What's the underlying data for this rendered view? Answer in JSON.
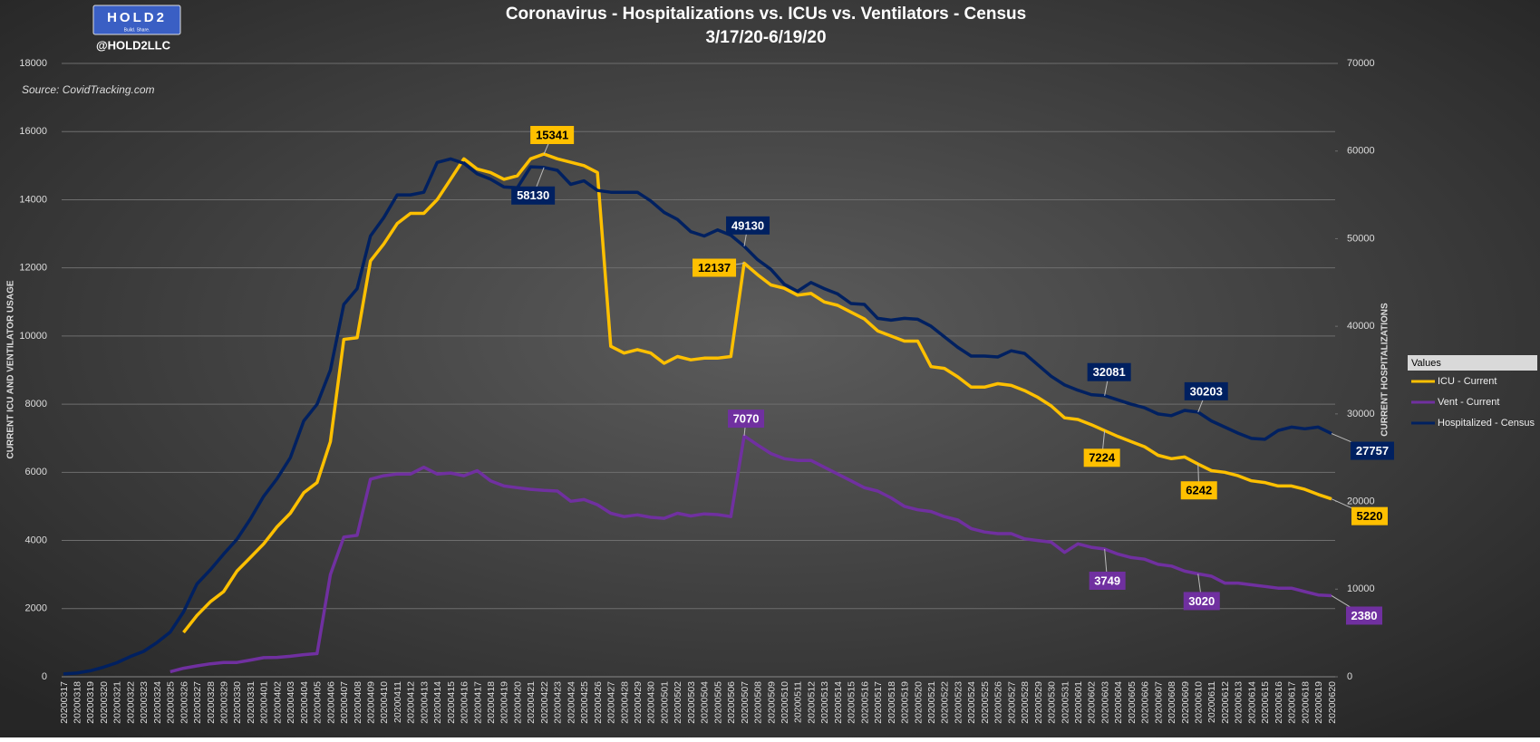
{
  "chart_data": {
    "type": "line",
    "title": "Coronavirus - Hospitalizations vs. ICUs vs. Ventilators - Census",
    "subtitle": "3/17/20-6/19/20",
    "source": "Source: CovidTracking.com",
    "handle": "@HOLD2LLC",
    "logo": "HOLD2",
    "logo_tagline": "Build. Share.",
    "ylabel": "CURRENT ICU AND VENTILATOR USAGE",
    "y2label": "CURRENT HOSPITALIZATIONS",
    "legend_title": "Values",
    "legend": "right",
    "grid": true,
    "ylim": [
      0,
      18000
    ],
    "yticks": [
      0,
      2000,
      4000,
      6000,
      8000,
      10000,
      12000,
      14000,
      16000,
      18000
    ],
    "y2lim": [
      0,
      70000
    ],
    "y2ticks": [
      0,
      10000,
      20000,
      30000,
      40000,
      50000,
      60000,
      70000
    ],
    "categories": [
      "20200317",
      "20200318",
      "20200319",
      "20200320",
      "20200321",
      "20200322",
      "20200323",
      "20200324",
      "20200325",
      "20200326",
      "20200327",
      "20200328",
      "20200329",
      "20200330",
      "20200331",
      "20200401",
      "20200402",
      "20200403",
      "20200404",
      "20200405",
      "20200406",
      "20200407",
      "20200408",
      "20200409",
      "20200410",
      "20200411",
      "20200412",
      "20200413",
      "20200414",
      "20200415",
      "20200416",
      "20200417",
      "20200418",
      "20200419",
      "20200420",
      "20200421",
      "20200422",
      "20200423",
      "20200424",
      "20200425",
      "20200426",
      "20200427",
      "20200428",
      "20200429",
      "20200430",
      "20200501",
      "20200502",
      "20200503",
      "20200504",
      "20200505",
      "20200506",
      "20200507",
      "20200508",
      "20200509",
      "20200510",
      "20200511",
      "20200512",
      "20200513",
      "20200514",
      "20200515",
      "20200516",
      "20200517",
      "20200518",
      "20200519",
      "20200520",
      "20200521",
      "20200522",
      "20200523",
      "20200524",
      "20200525",
      "20200526",
      "20200527",
      "20200528",
      "20200529",
      "20200530",
      "20200531",
      "20200601",
      "20200602",
      "20200603",
      "20200604",
      "20200605",
      "20200606",
      "20200607",
      "20200608",
      "20200609",
      "20200610",
      "20200611",
      "20200612",
      "20200613",
      "20200614",
      "20200615",
      "20200616",
      "20200617",
      "20200618",
      "20200619",
      "20200620"
    ],
    "series": [
      {
        "name": "ICU - Current",
        "color": "#ffc000",
        "label_text": "#000000",
        "values": [
          null,
          null,
          null,
          null,
          null,
          null,
          null,
          null,
          null,
          1300,
          1800,
          2200,
          2500,
          3100,
          3500,
          3900,
          4400,
          4800,
          5400,
          5700,
          6900,
          9900,
          9950,
          12200,
          12700,
          13300,
          13600,
          13600,
          14000,
          14600,
          15200,
          14900,
          14800,
          14600,
          14700,
          15200,
          15341,
          15200,
          15100,
          15000,
          14800,
          9700,
          9500,
          9600,
          9500,
          9200,
          9400,
          9300,
          9350,
          9350,
          9400,
          12137,
          11800,
          11500,
          11400,
          11200,
          11250,
          11000,
          10900,
          10700,
          10500,
          10150,
          10000,
          9850,
          9850,
          9100,
          9050,
          8800,
          8500,
          8500,
          8600,
          8550,
          8400,
          8200,
          7950,
          7600,
          7550,
          7400,
          7224,
          7050,
          6900,
          6750,
          6500,
          6400,
          6450,
          6242,
          6050,
          6000,
          5900,
          5750,
          5700,
          5600,
          5600,
          5500,
          5350,
          5220
        ]
      },
      {
        "name": "Vent - Current",
        "color": "#7030a0",
        "label_text": "#ffffff",
        "values": [
          null,
          null,
          null,
          null,
          null,
          null,
          null,
          null,
          150,
          250,
          320,
          380,
          420,
          420,
          490,
          560,
          570,
          600,
          650,
          680,
          3000,
          4100,
          4150,
          5800,
          5900,
          5950,
          5950,
          6150,
          5950,
          5980,
          5900,
          6050,
          5750,
          5600,
          5550,
          5500,
          5470,
          5450,
          5150,
          5200,
          5050,
          4800,
          4700,
          4750,
          4680,
          4650,
          4800,
          4720,
          4780,
          4760,
          4700,
          7070,
          6800,
          6550,
          6400,
          6350,
          6350,
          6150,
          5950,
          5750,
          5550,
          5450,
          5250,
          5000,
          4900,
          4850,
          4700,
          4600,
          4350,
          4250,
          4200,
          4200,
          4050,
          4000,
          3950,
          3650,
          3900,
          3800,
          3749,
          3600,
          3500,
          3450,
          3300,
          3250,
          3100,
          3020,
          2950,
          2750,
          2750,
          2700,
          2650,
          2600,
          2600,
          2500,
          2400,
          2380
        ]
      },
      {
        "name": "Hospitalized - Census",
        "color": "#002060",
        "label_text": "#ffffff",
        "axis": "y2",
        "values": [
          325,
          420,
          680,
          1100,
          1600,
          2300,
          2900,
          3900,
          5100,
          7400,
          10600,
          12200,
          14000,
          15700,
          18000,
          20600,
          22600,
          25000,
          29200,
          31100,
          35000,
          42500,
          44300,
          50300,
          52400,
          55000,
          55000,
          55300,
          58700,
          59100,
          58600,
          57400,
          56800,
          55900,
          55800,
          58200,
          58130,
          57800,
          56200,
          56600,
          55500,
          55300,
          55300,
          55300,
          54300,
          53000,
          52200,
          50800,
          50300,
          51000,
          50400,
          49130,
          47600,
          46500,
          44800,
          44000,
          45000,
          44300,
          43700,
          42600,
          42500,
          40900,
          40700,
          40900,
          40800,
          40000,
          38800,
          37600,
          36600,
          36600,
          36500,
          37200,
          36900,
          35600,
          34300,
          33300,
          32700,
          32200,
          32081,
          31600,
          31100,
          30700,
          30000,
          29800,
          30400,
          30203,
          29200,
          28500,
          27800,
          27200,
          27100,
          28100,
          28500,
          28300,
          28500,
          27757
        ]
      }
    ]
  }
}
